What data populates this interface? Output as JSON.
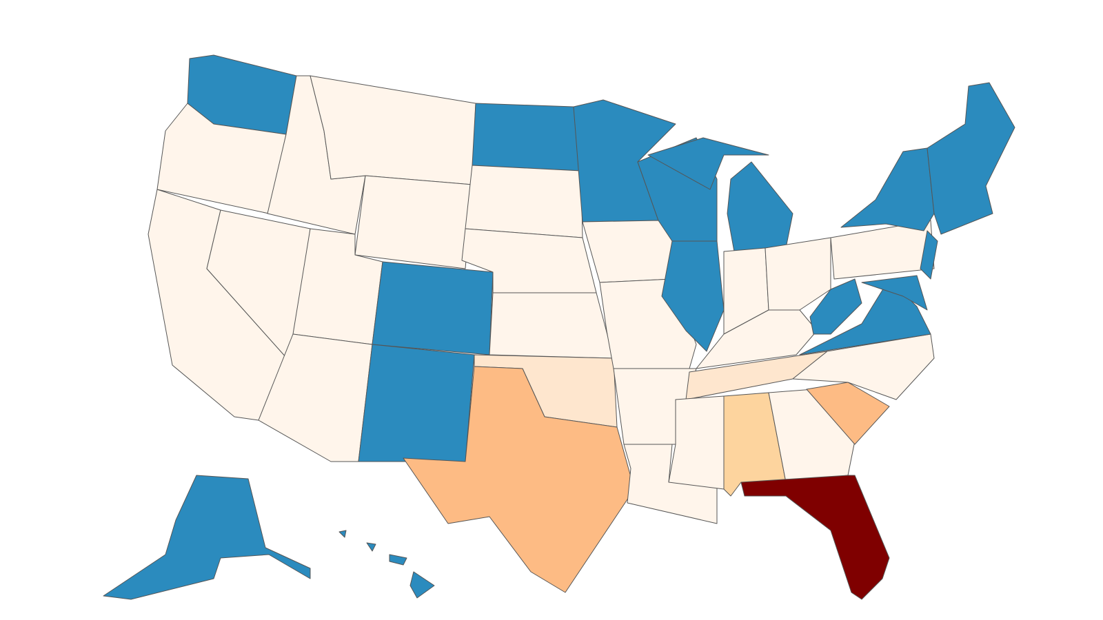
{
  "map": {
    "colors": [
      "#2b8bbe",
      "#fff5eb",
      "#fee6ce",
      "#fdd49e",
      "#fdbb84",
      "#7f0000"
    ]
  }
}
